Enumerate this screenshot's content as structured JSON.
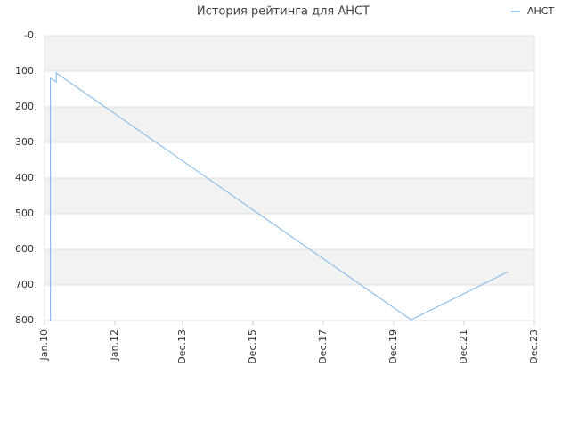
{
  "chart_data": {
    "type": "line",
    "title": "История рейтинга для АНСТ",
    "x": [
      "2010-03",
      "2010-03",
      "2010-05",
      "2010-05",
      "2020-06",
      "2023-03"
    ],
    "series": [
      {
        "name": "АНСТ",
        "color": "#7cb5ec",
        "values": [
          800,
          120,
          130,
          105,
          798,
          663
        ]
      }
    ],
    "xlim": [
      "2010-01",
      "2023-12"
    ],
    "xticks": [
      {
        "value": "2010-01",
        "label": "Jan.10"
      },
      {
        "value": "2012-01",
        "label": "Jan.12"
      },
      {
        "value": "2013-12",
        "label": "Dec.13"
      },
      {
        "value": "2015-12",
        "label": "Dec.15"
      },
      {
        "value": "2017-12",
        "label": "Dec.17"
      },
      {
        "value": "2019-12",
        "label": "Dec.19"
      },
      {
        "value": "2021-12",
        "label": "Dec.21"
      },
      {
        "value": "2023-12",
        "label": "Dec.23"
      }
    ],
    "ylim": [
      0,
      800
    ],
    "y_inverted": true,
    "yticks": [
      {
        "value": 0,
        "label": "-0"
      },
      100,
      200,
      300,
      400,
      500,
      600,
      700,
      800
    ],
    "grid": true,
    "legend": "top-right"
  }
}
